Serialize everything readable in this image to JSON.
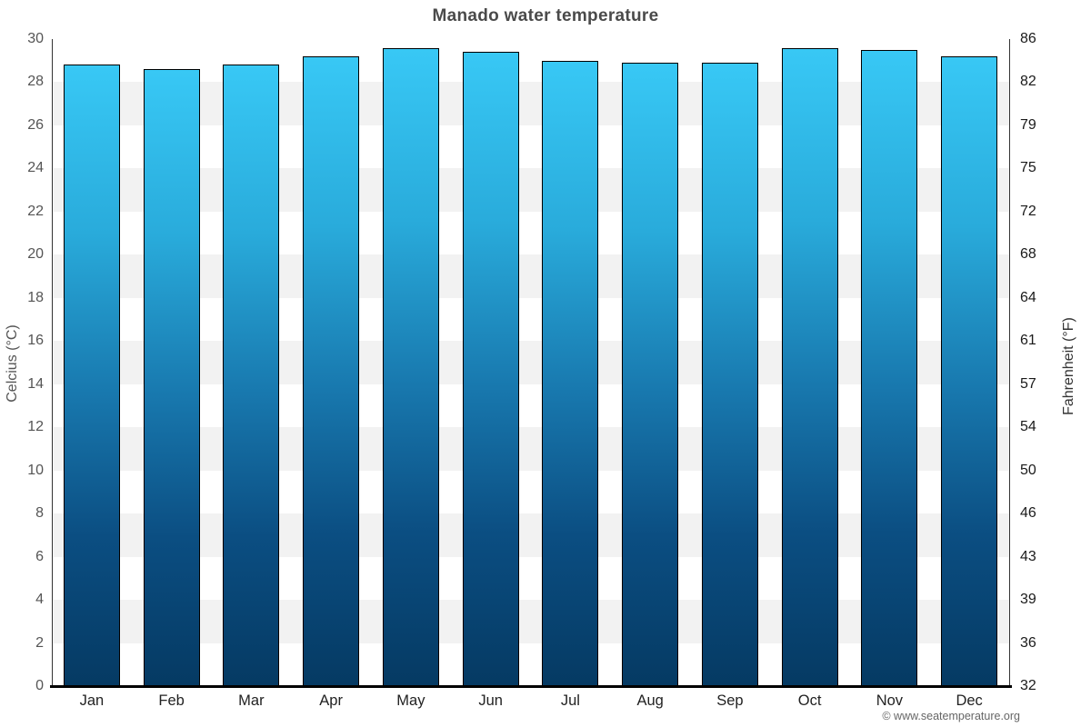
{
  "title": "Manado water temperature",
  "attribution": "© www.seatemperature.org",
  "chart_data": {
    "type": "bar",
    "title": "Manado water temperature",
    "categories": [
      "Jan",
      "Feb",
      "Mar",
      "Apr",
      "May",
      "Jun",
      "Jul",
      "Aug",
      "Sep",
      "Oct",
      "Nov",
      "Dec"
    ],
    "values": [
      28.8,
      28.6,
      28.8,
      29.2,
      29.6,
      29.4,
      29.0,
      28.9,
      28.9,
      29.6,
      29.5,
      29.2
    ],
    "unit": "°C",
    "ylabel_left": "Celcius (°C)",
    "ylabel_right": "Fahrenheit (°F)",
    "ylim": [
      0,
      30
    ],
    "yticks_celsius": [
      0,
      2,
      4,
      6,
      8,
      10,
      12,
      14,
      16,
      18,
      20,
      22,
      24,
      26,
      28,
      30
    ],
    "yticks_fahrenheit": [
      32,
      36,
      39,
      43,
      46,
      50,
      54,
      57,
      61,
      64,
      68,
      72,
      75,
      79,
      82,
      86
    ],
    "legend": "none",
    "grid": "alternating horizontal bands every 2°C",
    "colors": {
      "bar_gradient_top": "#38c8f5",
      "bar_gradient_mid": "#1878ae",
      "bar_gradient_bottom": "#053a63",
      "bar_border": "#000000",
      "band_light": "#ffffff",
      "band_gray": "#f2f2f2",
      "axis_line": "#333333",
      "baseline": "#000000",
      "title_text": "#4a4a4a",
      "tick_text_left": "#555555",
      "tick_text_right": "#1a1a1a"
    }
  }
}
